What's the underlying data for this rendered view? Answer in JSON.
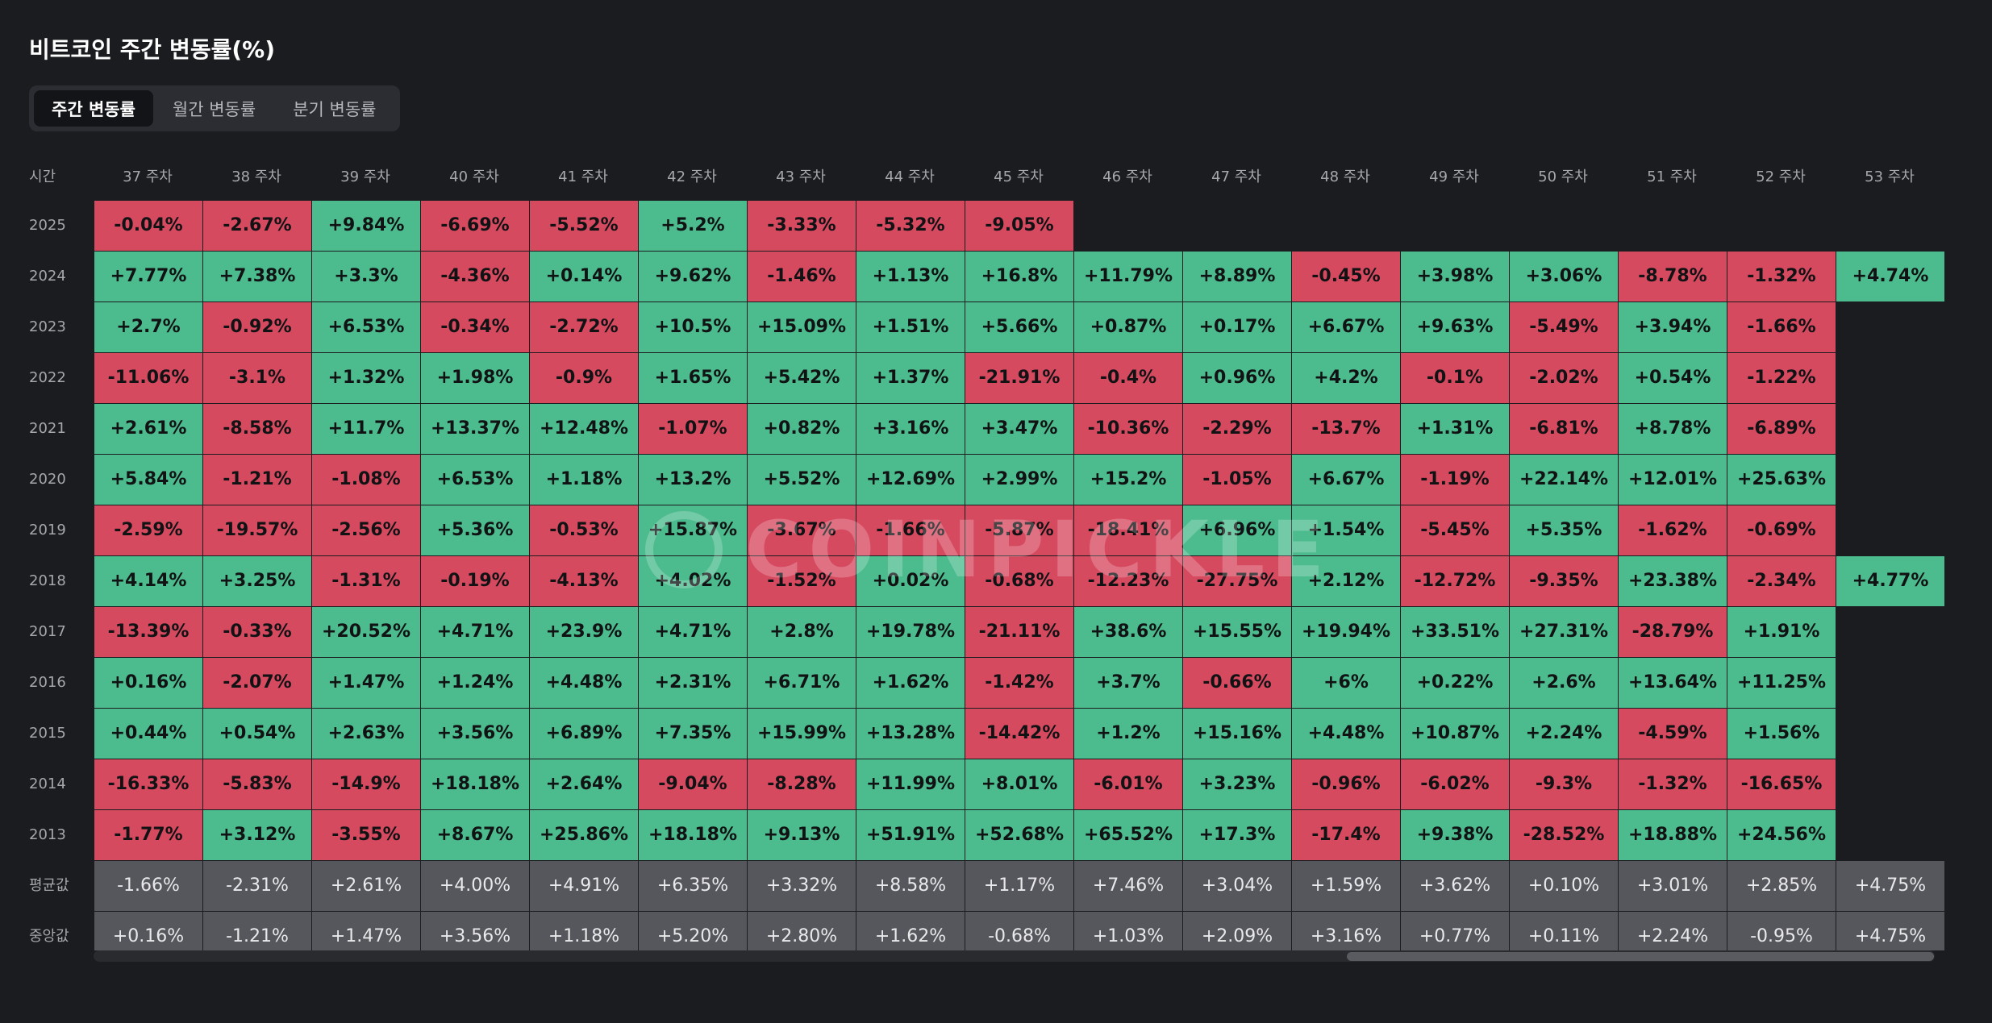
{
  "title": "비트코인 주간 변동률(%)",
  "tabs": [
    {
      "label": "주간 변동률",
      "active": true
    },
    {
      "label": "월간 변동률",
      "active": false
    },
    {
      "label": "분기 변동률",
      "active": false
    }
  ],
  "table": {
    "corner_label": "시간",
    "weeks": [
      "37 주차",
      "38 주차",
      "39 주차",
      "40 주차",
      "41 주차",
      "42 주차",
      "43 주차",
      "44 주차",
      "45 주차",
      "46 주차",
      "47 주차",
      "48 주차",
      "49 주차",
      "50 주차",
      "51 주차",
      "52 주차",
      "53 주차"
    ],
    "rows": [
      {
        "year": "2025",
        "values": [
          "-0.04%",
          "-2.67%",
          "+9.84%",
          "-6.69%",
          "-5.52%",
          "+5.2%",
          "-3.33%",
          "-5.32%",
          "-9.05%",
          null,
          null,
          null,
          null,
          null,
          null,
          null,
          null
        ]
      },
      {
        "year": "2024",
        "values": [
          "+7.77%",
          "+7.38%",
          "+3.3%",
          "-4.36%",
          "+0.14%",
          "+9.62%",
          "-1.46%",
          "+1.13%",
          "+16.8%",
          "+11.79%",
          "+8.89%",
          "-0.45%",
          "+3.98%",
          "+3.06%",
          "-8.78%",
          "-1.32%",
          "+4.74%"
        ]
      },
      {
        "year": "2023",
        "values": [
          "+2.7%",
          "-0.92%",
          "+6.53%",
          "-0.34%",
          "-2.72%",
          "+10.5%",
          "+15.09%",
          "+1.51%",
          "+5.66%",
          "+0.87%",
          "+0.17%",
          "+6.67%",
          "+9.63%",
          "-5.49%",
          "+3.94%",
          "-1.66%",
          null
        ]
      },
      {
        "year": "2022",
        "values": [
          "-11.06%",
          "-3.1%",
          "+1.32%",
          "+1.98%",
          "-0.9%",
          "+1.65%",
          "+5.42%",
          "+1.37%",
          "-21.91%",
          "-0.4%",
          "+0.96%",
          "+4.2%",
          "-0.1%",
          "-2.02%",
          "+0.54%",
          "-1.22%",
          null
        ]
      },
      {
        "year": "2021",
        "values": [
          "+2.61%",
          "-8.58%",
          "+11.7%",
          "+13.37%",
          "+12.48%",
          "-1.07%",
          "+0.82%",
          "+3.16%",
          "+3.47%",
          "-10.36%",
          "-2.29%",
          "-13.7%",
          "+1.31%",
          "-6.81%",
          "+8.78%",
          "-6.89%",
          null
        ]
      },
      {
        "year": "2020",
        "values": [
          "+5.84%",
          "-1.21%",
          "-1.08%",
          "+6.53%",
          "+1.18%",
          "+13.2%",
          "+5.52%",
          "+12.69%",
          "+2.99%",
          "+15.2%",
          "-1.05%",
          "+6.67%",
          "-1.19%",
          "+22.14%",
          "+12.01%",
          "+25.63%",
          null
        ]
      },
      {
        "year": "2019",
        "values": [
          "-2.59%",
          "-19.57%",
          "-2.56%",
          "+5.36%",
          "-0.53%",
          "+15.87%",
          "-3.67%",
          "-1.66%",
          "-5.87%",
          "-18.41%",
          "+6.96%",
          "+1.54%",
          "-5.45%",
          "+5.35%",
          "-1.62%",
          "-0.69%",
          null
        ]
      },
      {
        "year": "2018",
        "values": [
          "+4.14%",
          "+3.25%",
          "-1.31%",
          "-0.19%",
          "-4.13%",
          "+4.02%",
          "-1.52%",
          "+0.02%",
          "-0.68%",
          "-12.23%",
          "-27.75%",
          "+2.12%",
          "-12.72%",
          "-9.35%",
          "+23.38%",
          "-2.34%",
          "+4.77%"
        ]
      },
      {
        "year": "2017",
        "values": [
          "-13.39%",
          "-0.33%",
          "+20.52%",
          "+4.71%",
          "+23.9%",
          "+4.71%",
          "+2.8%",
          "+19.78%",
          "-21.11%",
          "+38.6%",
          "+15.55%",
          "+19.94%",
          "+33.51%",
          "+27.31%",
          "-28.79%",
          "+1.91%",
          null
        ]
      },
      {
        "year": "2016",
        "values": [
          "+0.16%",
          "-2.07%",
          "+1.47%",
          "+1.24%",
          "+4.48%",
          "+2.31%",
          "+6.71%",
          "+1.62%",
          "-1.42%",
          "+3.7%",
          "-0.66%",
          "+6%",
          "+0.22%",
          "+2.6%",
          "+13.64%",
          "+11.25%",
          null
        ]
      },
      {
        "year": "2015",
        "values": [
          "+0.44%",
          "+0.54%",
          "+2.63%",
          "+3.56%",
          "+6.89%",
          "+7.35%",
          "+15.99%",
          "+13.28%",
          "-14.42%",
          "+1.2%",
          "+15.16%",
          "+4.48%",
          "+10.87%",
          "+2.24%",
          "-4.59%",
          "+1.56%",
          null
        ]
      },
      {
        "year": "2014",
        "values": [
          "-16.33%",
          "-5.83%",
          "-14.9%",
          "+18.18%",
          "+2.64%",
          "-9.04%",
          "-8.28%",
          "+11.99%",
          "+8.01%",
          "-6.01%",
          "+3.23%",
          "-0.96%",
          "-6.02%",
          "-9.3%",
          "-1.32%",
          "-16.65%",
          null
        ]
      },
      {
        "year": "2013",
        "values": [
          "-1.77%",
          "+3.12%",
          "-3.55%",
          "+8.67%",
          "+25.86%",
          "+18.18%",
          "+9.13%",
          "+51.91%",
          "+52.68%",
          "+65.52%",
          "+17.3%",
          "-17.4%",
          "+9.38%",
          "-28.52%",
          "+18.88%",
          "+24.56%",
          null
        ]
      }
    ],
    "average": {
      "label": "평균값",
      "values": [
        "-1.66%",
        "-2.31%",
        "+2.61%",
        "+4.00%",
        "+4.91%",
        "+6.35%",
        "+3.32%",
        "+8.58%",
        "+1.17%",
        "+7.46%",
        "+3.04%",
        "+1.59%",
        "+3.62%",
        "+0.10%",
        "+3.01%",
        "+2.85%",
        "+4.75%"
      ]
    },
    "median": {
      "label": "중앙값",
      "values": [
        "+0.16%",
        "-1.21%",
        "+1.47%",
        "+3.56%",
        "+1.18%",
        "+5.20%",
        "+2.80%",
        "+1.62%",
        "-0.68%",
        "+1.03%",
        "+2.09%",
        "+3.16%",
        "+0.77%",
        "+0.11%",
        "+2.24%",
        "-0.95%",
        "+4.75%"
      ]
    }
  },
  "watermark": {
    "text": "COINPICKLE"
  },
  "colors": {
    "positive": "#4cbb8d",
    "negative": "#d64a60",
    "stat": "#56575c",
    "background": "#1b1c1f"
  }
}
